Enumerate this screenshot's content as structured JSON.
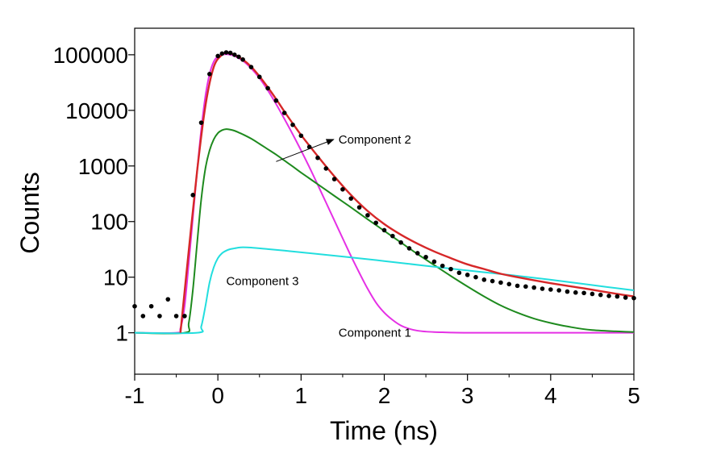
{
  "chart_data": {
    "type": "scatter",
    "title": "",
    "xlabel": "Time (ns)",
    "ylabel": "Counts",
    "xlim": [
      -1,
      5
    ],
    "ylim": [
      0.18,
      300000
    ],
    "y_scale": "log",
    "x_ticks": [
      -1,
      0,
      1,
      2,
      3,
      4,
      5
    ],
    "x_tick_labels": [
      "-1",
      "0",
      "1",
      "2",
      "3",
      "4",
      "5"
    ],
    "y_ticks": [
      1,
      10,
      100,
      1000,
      10000,
      100000
    ],
    "y_tick_labels": [
      "1",
      "10",
      "100",
      "1000",
      "10000",
      "100000"
    ],
    "grid": false,
    "legend": "none",
    "colors": {
      "data": "#000000",
      "fit": "#d62728",
      "component1": "#e530e5",
      "component2": "#1e8a1e",
      "component3": "#22dede"
    },
    "series": [
      {
        "kind": "points",
        "x": [
          -1.0,
          -0.9,
          -0.8,
          -0.7,
          -0.6,
          -0.5,
          -0.4,
          -0.3,
          -0.2,
          -0.1,
          0.0,
          0.05,
          0.1,
          0.15,
          0.2,
          0.25,
          0.3,
          0.4,
          0.5,
          0.6,
          0.7,
          0.8,
          0.9,
          1.0,
          1.1,
          1.2,
          1.3,
          1.4,
          1.5,
          1.6,
          1.7,
          1.8,
          1.9,
          2.0,
          2.1,
          2.2,
          2.3,
          2.4,
          2.5,
          2.6,
          2.7,
          2.8,
          2.9,
          3.0,
          3.1,
          3.2,
          3.3,
          3.4,
          3.5,
          3.6,
          3.7,
          3.8,
          3.9,
          4.0,
          4.1,
          4.2,
          4.3,
          4.4,
          4.5,
          4.6,
          4.7,
          4.8,
          4.9,
          5.0
        ],
        "y": [
          3,
          2,
          3,
          2,
          4,
          2,
          2,
          300,
          6000,
          45000,
          95000,
          105000,
          110000,
          108000,
          100000,
          92000,
          82000,
          60000,
          40000,
          25000,
          15000,
          9000,
          5500,
          3500,
          2200,
          1400,
          900,
          580,
          380,
          260,
          180,
          130,
          95,
          70,
          55,
          42,
          33,
          27,
          23,
          19,
          16,
          14,
          12,
          11,
          10,
          9,
          8.5,
          8,
          7.5,
          7,
          6.8,
          6.5,
          6.2,
          6,
          5.8,
          5.5,
          5.3,
          5.2,
          5,
          4.8,
          4.6,
          4.5,
          4.3,
          4.2
        ]
      },
      {
        "kind": "fit",
        "x": [
          -0.45,
          -0.35,
          -0.25,
          -0.15,
          -0.05,
          0.05,
          0.1,
          0.15,
          0.2,
          0.3,
          0.4,
          0.5,
          0.6,
          0.7,
          0.8,
          0.9,
          1.0,
          1.2,
          1.4,
          1.6,
          1.8,
          2.0,
          2.2,
          2.4,
          2.6,
          2.8,
          3.0,
          3.2,
          3.4,
          3.6,
          3.8,
          4.0,
          4.2,
          4.4,
          4.6,
          4.8,
          5.0
        ],
        "y": [
          1,
          30,
          800,
          12000,
          60000,
          100000,
          107000,
          106000,
          100000,
          82000,
          61000,
          41000,
          26000,
          16000,
          9500,
          5800,
          3600,
          1500,
          650,
          300,
          155,
          90,
          58,
          40,
          29,
          22,
          17,
          14,
          11.5,
          10,
          8.8,
          7.8,
          7,
          6.3,
          5.6,
          5,
          4.5
        ]
      },
      {
        "name": "Component 1",
        "kind": "component",
        "x": [
          -1.0,
          -0.5,
          -0.45,
          -0.4,
          -0.35,
          -0.3,
          -0.25,
          -0.2,
          -0.15,
          -0.1,
          -0.05,
          0.0,
          0.05,
          0.1,
          0.15,
          0.2,
          0.3,
          0.4,
          0.5,
          0.6,
          0.7,
          0.8,
          0.9,
          1.0,
          1.1,
          1.2,
          1.3,
          1.4,
          1.5,
          1.6,
          1.7,
          1.8,
          1.9,
          2.0,
          2.1,
          2.2,
          2.3,
          2.4,
          2.5,
          2.6,
          2.7,
          2.8,
          3.0,
          3.3,
          3.6,
          4.0,
          4.5,
          5.0
        ],
        "y": [
          1,
          1,
          1.2,
          3,
          18,
          120,
          800,
          4500,
          18000,
          45000,
          75000,
          93000,
          100000,
          102000,
          100000,
          95000,
          78000,
          57000,
          38000,
          23000,
          13000,
          7000,
          3700,
          1900,
          950,
          460,
          220,
          105,
          50,
          24,
          12,
          6.2,
          3.5,
          2.3,
          1.7,
          1.35,
          1.18,
          1.09,
          1.05,
          1.03,
          1.02,
          1.01,
          1,
          1,
          1,
          1,
          1,
          1
        ]
      },
      {
        "name": "Component 2",
        "kind": "component",
        "x": [
          -1.0,
          -0.4,
          -0.35,
          -0.3,
          -0.25,
          -0.2,
          -0.15,
          -0.1,
          -0.05,
          0.0,
          0.05,
          0.1,
          0.15,
          0.2,
          0.25,
          0.3,
          0.4,
          0.5,
          0.6,
          0.7,
          0.8,
          0.9,
          1.0,
          1.2,
          1.4,
          1.6,
          1.8,
          2.0,
          2.2,
          2.4,
          2.6,
          2.8,
          3.0,
          3.2,
          3.4,
          3.6,
          3.8,
          4.0,
          4.2,
          4.5,
          5.0
        ],
        "y": [
          1,
          1,
          1.5,
          6,
          40,
          250,
          900,
          1900,
          3000,
          3900,
          4400,
          4600,
          4500,
          4300,
          4000,
          3700,
          3100,
          2500,
          2000,
          1600,
          1250,
          980,
          760,
          470,
          290,
          180,
          110,
          68,
          42,
          26,
          16.5,
          10.5,
          6.8,
          4.5,
          3.1,
          2.3,
          1.8,
          1.5,
          1.3,
          1.12,
          1.03
        ]
      },
      {
        "name": "Component 3",
        "kind": "component",
        "x": [
          -1.0,
          -0.25,
          -0.2,
          -0.15,
          -0.1,
          -0.05,
          0.0,
          0.05,
          0.1,
          0.15,
          0.2,
          0.25,
          0.3,
          0.4,
          0.6,
          0.8,
          1.0,
          1.5,
          2.0,
          2.5,
          3.0,
          3.5,
          4.0,
          4.5,
          5.0
        ],
        "y": [
          1,
          1,
          1.3,
          3,
          8,
          15,
          22,
          27,
          30,
          32,
          33,
          34,
          34.5,
          34,
          32,
          30,
          28,
          23.5,
          19.5,
          16,
          13.2,
          11,
          9,
          7.2,
          5.8
        ]
      }
    ],
    "annotations": [
      {
        "text": "Component 2",
        "x": 1.45,
        "y": 3000,
        "arrow_from_x": 0.7,
        "arrow_from_y": 1200
      },
      {
        "text": "Component 3",
        "x": 0.1,
        "y": 8.5
      },
      {
        "text": "Component 1",
        "x": 1.45,
        "y": 1.0
      }
    ]
  }
}
